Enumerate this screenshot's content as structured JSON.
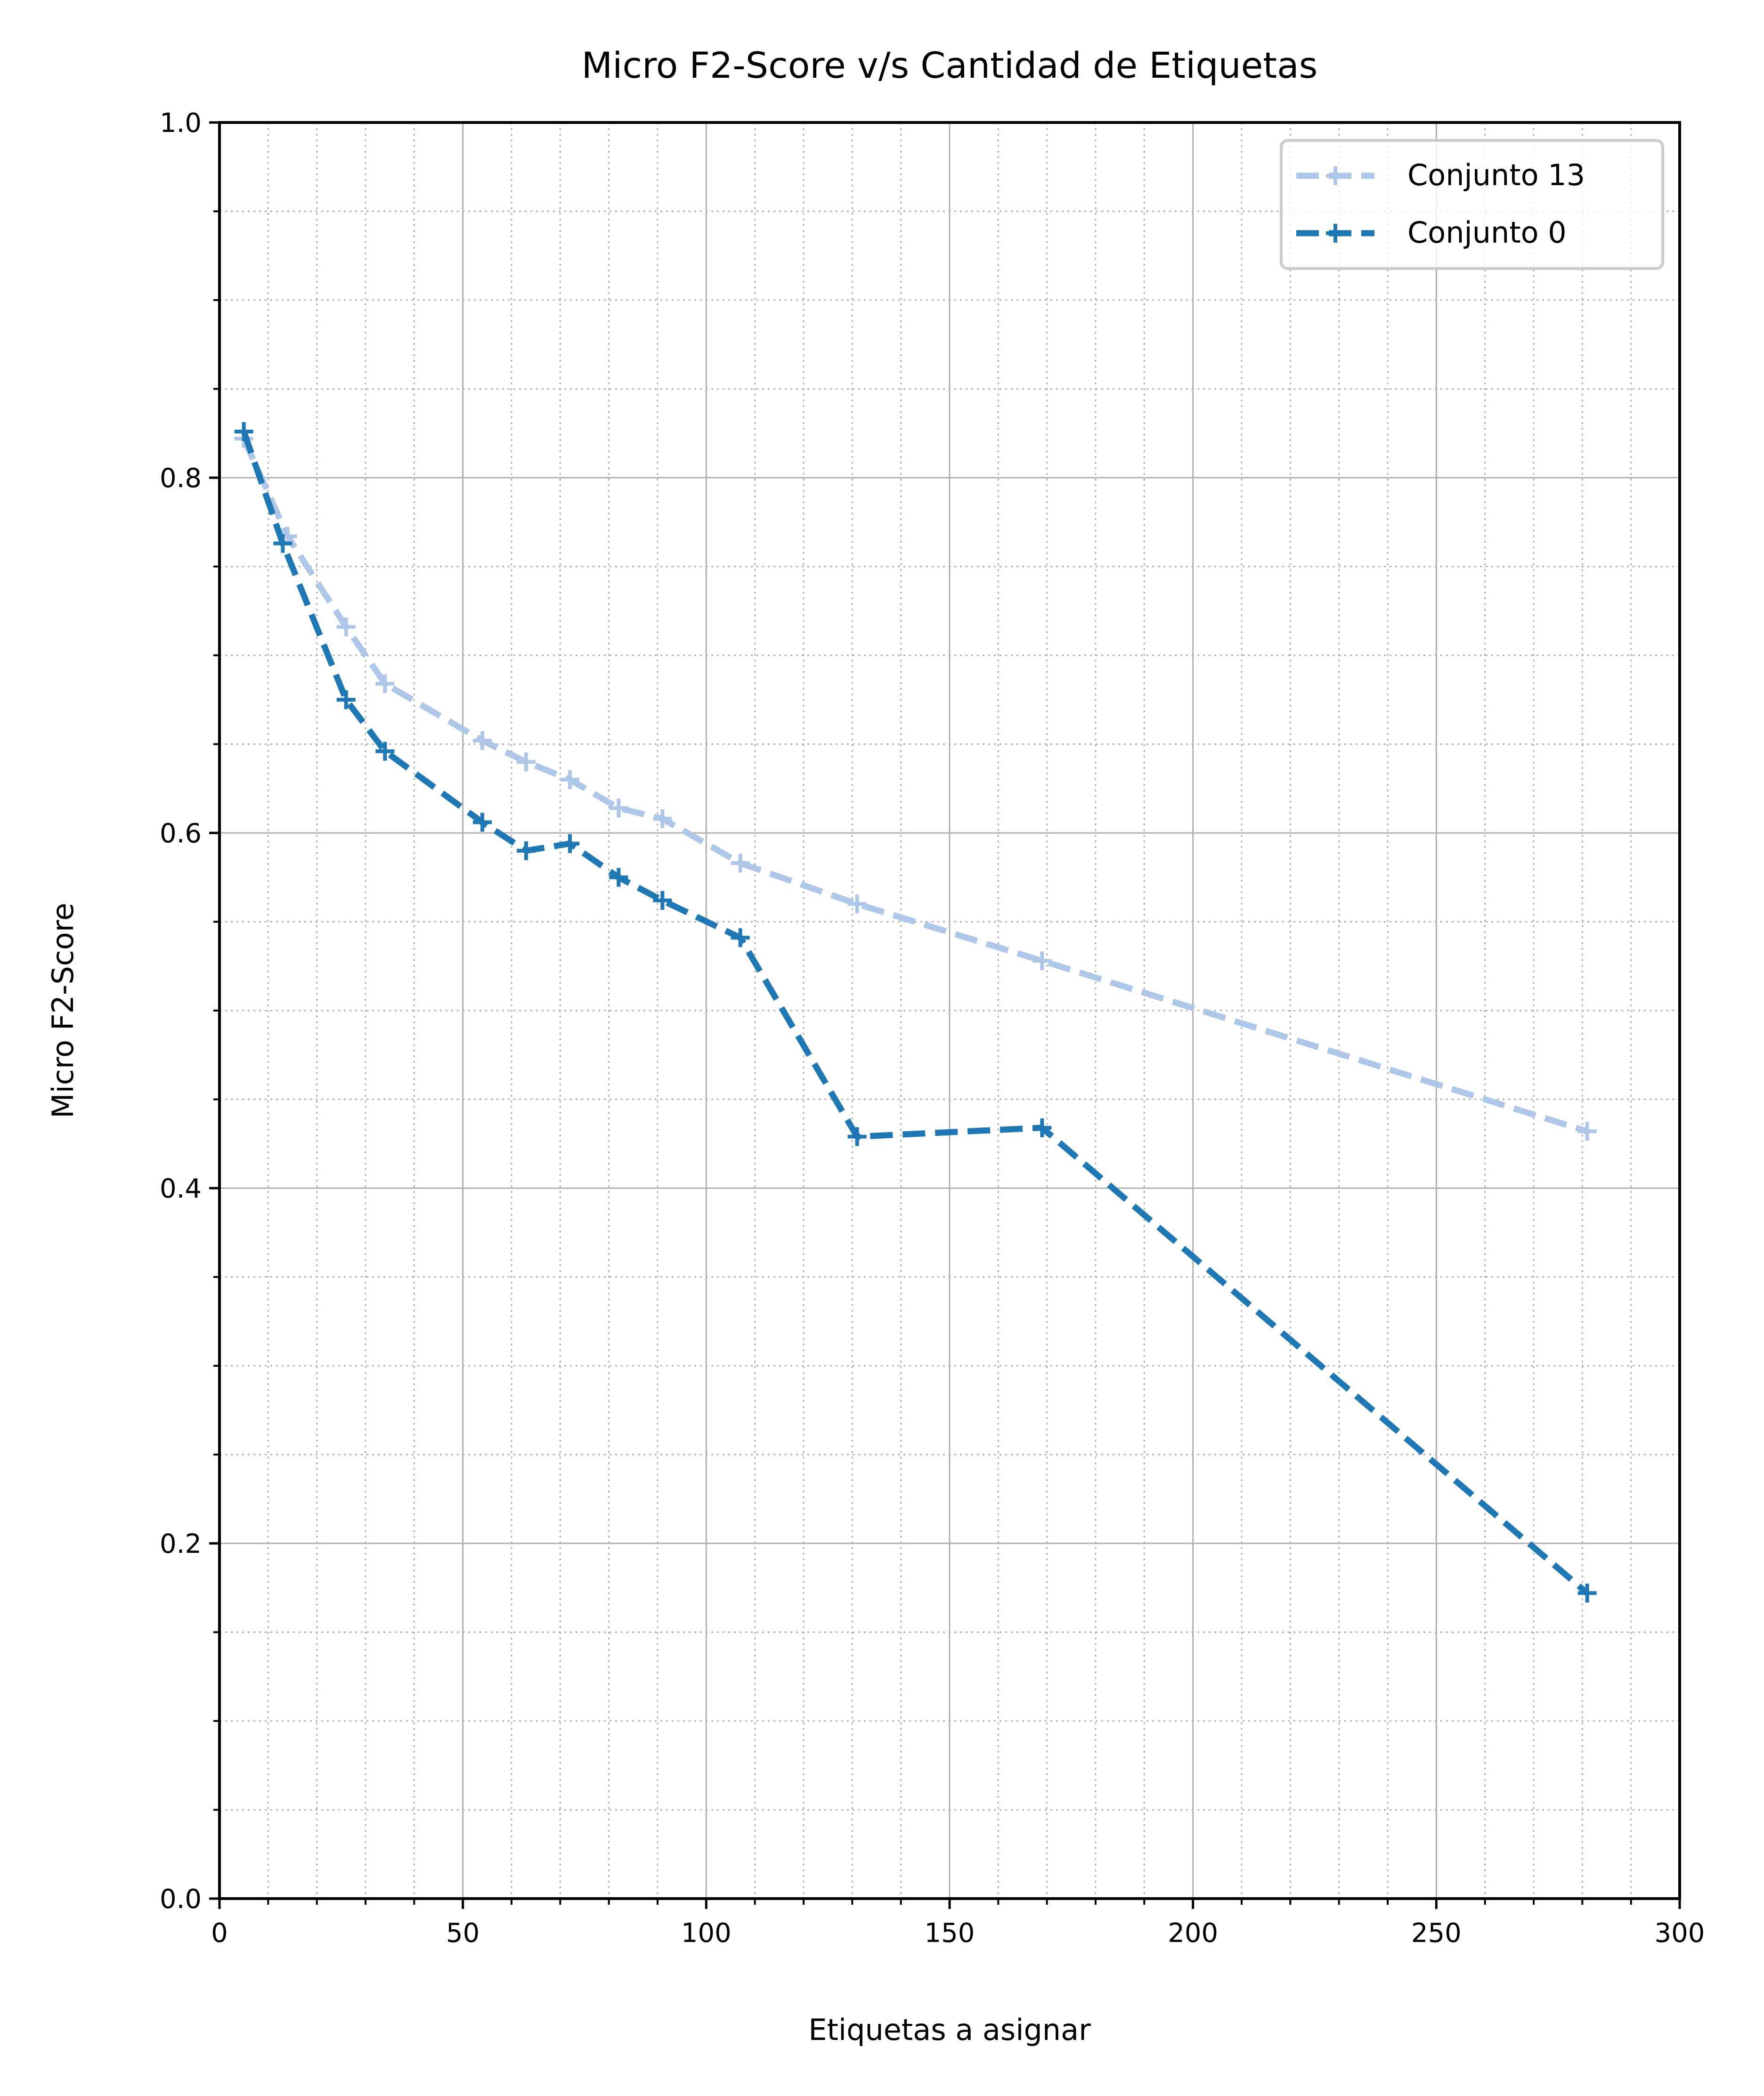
{
  "chart_data": {
    "type": "line",
    "title": "Micro F2-Score v/s Cantidad de Etiquetas",
    "xlabel": "Etiquetas a asignar",
    "ylabel": "Micro F2-Score",
    "xlim": [
      0,
      300
    ],
    "ylim": [
      0,
      1
    ],
    "xticks": [
      0,
      50,
      100,
      150,
      200,
      250,
      300
    ],
    "xtick_labels": [
      "0",
      "50",
      "100",
      "150",
      "200",
      "250",
      "300"
    ],
    "yticks": [
      0,
      0.2,
      0.4,
      0.6,
      0.8,
      1.0
    ],
    "ytick_labels": [
      "0.0",
      "0.2",
      "0.4",
      "0.6",
      "0.8",
      "1.0"
    ],
    "x_minor_step": 10,
    "y_minor_step": 0.05,
    "grid": {
      "major": true,
      "minor": true
    },
    "legend_position": "top-right",
    "series": [
      {
        "name": "Conjunto 13",
        "color": "#aec7e8",
        "marker": "+",
        "linestyle": "dashed",
        "x": [
          5,
          14,
          26,
          34,
          54,
          63,
          72,
          82,
          91,
          107,
          131,
          169,
          281
        ],
        "y": [
          0.822,
          0.767,
          0.716,
          0.684,
          0.652,
          0.64,
          0.63,
          0.614,
          0.608,
          0.583,
          0.56,
          0.528,
          0.432
        ]
      },
      {
        "name": "Conjunto 0",
        "color": "#1f77b4",
        "marker": "+",
        "linestyle": "dashed",
        "x": [
          5,
          13,
          26,
          34,
          54,
          63,
          72,
          82,
          91,
          107,
          131,
          169,
          281
        ],
        "y": [
          0.826,
          0.763,
          0.675,
          0.646,
          0.606,
          0.59,
          0.594,
          0.575,
          0.562,
          0.541,
          0.429,
          0.434,
          0.172
        ]
      }
    ]
  }
}
